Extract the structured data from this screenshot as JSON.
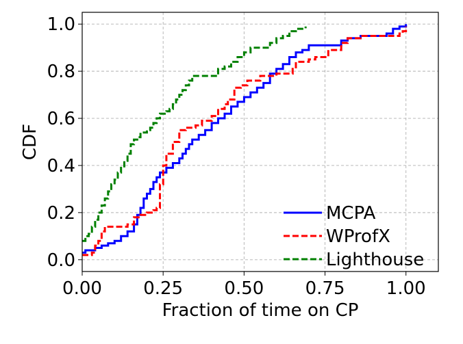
{
  "chart_data": {
    "type": "line",
    "title": "",
    "xlabel": "Fraction of time on CP",
    "ylabel": "CDF",
    "xlim": [
      0.0,
      1.1
    ],
    "ylim": [
      -0.05,
      1.05
    ],
    "x_ticks": [
      0.0,
      0.25,
      0.5,
      0.75,
      1.0
    ],
    "x_tick_labels": [
      "0.00",
      "0.25",
      "0.50",
      "0.75",
      "1.00"
    ],
    "y_ticks": [
      0.0,
      0.2,
      0.4,
      0.6,
      0.8,
      1.0
    ],
    "y_tick_labels": [
      "0.0",
      "0.2",
      "0.4",
      "0.6",
      "0.8",
      "1.0"
    ],
    "grid": true,
    "legend_position": "lower-right",
    "series": [
      {
        "name": "MCPA",
        "color": "#0000ff",
        "dash": "solid",
        "points": [
          [
            0.0,
            0.03
          ],
          [
            0.01,
            0.04
          ],
          [
            0.03,
            0.04
          ],
          [
            0.04,
            0.05
          ],
          [
            0.06,
            0.06
          ],
          [
            0.08,
            0.07
          ],
          [
            0.1,
            0.08
          ],
          [
            0.12,
            0.1
          ],
          [
            0.14,
            0.12
          ],
          [
            0.16,
            0.15
          ],
          [
            0.17,
            0.19
          ],
          [
            0.18,
            0.22
          ],
          [
            0.19,
            0.26
          ],
          [
            0.2,
            0.28
          ],
          [
            0.21,
            0.3
          ],
          [
            0.22,
            0.33
          ],
          [
            0.23,
            0.35
          ],
          [
            0.24,
            0.37
          ],
          [
            0.26,
            0.39
          ],
          [
            0.28,
            0.41
          ],
          [
            0.3,
            0.43
          ],
          [
            0.31,
            0.45
          ],
          [
            0.32,
            0.47
          ],
          [
            0.33,
            0.49
          ],
          [
            0.34,
            0.51
          ],
          [
            0.36,
            0.53
          ],
          [
            0.38,
            0.55
          ],
          [
            0.4,
            0.58
          ],
          [
            0.42,
            0.6
          ],
          [
            0.44,
            0.62
          ],
          [
            0.46,
            0.65
          ],
          [
            0.48,
            0.67
          ],
          [
            0.5,
            0.69
          ],
          [
            0.52,
            0.71
          ],
          [
            0.54,
            0.73
          ],
          [
            0.56,
            0.75
          ],
          [
            0.58,
            0.79
          ],
          [
            0.6,
            0.81
          ],
          [
            0.62,
            0.83
          ],
          [
            0.64,
            0.86
          ],
          [
            0.66,
            0.88
          ],
          [
            0.68,
            0.89
          ],
          [
            0.7,
            0.91
          ],
          [
            0.72,
            0.91
          ],
          [
            0.75,
            0.91
          ],
          [
            0.78,
            0.91
          ],
          [
            0.8,
            0.93
          ],
          [
            0.82,
            0.94
          ],
          [
            0.86,
            0.95
          ],
          [
            0.9,
            0.95
          ],
          [
            0.94,
            0.96
          ],
          [
            0.96,
            0.98
          ],
          [
            0.98,
            0.99
          ],
          [
            1.0,
            1.0
          ]
        ]
      },
      {
        "name": "WProfX",
        "color": "#ff0000",
        "dash": "dashed",
        "points": [
          [
            0.0,
            0.02
          ],
          [
            0.02,
            0.02
          ],
          [
            0.03,
            0.03
          ],
          [
            0.04,
            0.06
          ],
          [
            0.05,
            0.08
          ],
          [
            0.06,
            0.12
          ],
          [
            0.07,
            0.14
          ],
          [
            0.1,
            0.14
          ],
          [
            0.12,
            0.14
          ],
          [
            0.14,
            0.15
          ],
          [
            0.16,
            0.18
          ],
          [
            0.18,
            0.19
          ],
          [
            0.2,
            0.2
          ],
          [
            0.22,
            0.21
          ],
          [
            0.23,
            0.22
          ],
          [
            0.24,
            0.32
          ],
          [
            0.25,
            0.4
          ],
          [
            0.26,
            0.45
          ],
          [
            0.28,
            0.5
          ],
          [
            0.3,
            0.55
          ],
          [
            0.32,
            0.56
          ],
          [
            0.35,
            0.57
          ],
          [
            0.37,
            0.59
          ],
          [
            0.4,
            0.61
          ],
          [
            0.42,
            0.64
          ],
          [
            0.44,
            0.66
          ],
          [
            0.45,
            0.68
          ],
          [
            0.47,
            0.73
          ],
          [
            0.49,
            0.74
          ],
          [
            0.51,
            0.76
          ],
          [
            0.53,
            0.76
          ],
          [
            0.55,
            0.78
          ],
          [
            0.57,
            0.78
          ],
          [
            0.6,
            0.79
          ],
          [
            0.62,
            0.79
          ],
          [
            0.64,
            0.79
          ],
          [
            0.65,
            0.81
          ],
          [
            0.66,
            0.84
          ],
          [
            0.67,
            0.84
          ],
          [
            0.7,
            0.85
          ],
          [
            0.72,
            0.86
          ],
          [
            0.75,
            0.86
          ],
          [
            0.76,
            0.89
          ],
          [
            0.79,
            0.89
          ],
          [
            0.8,
            0.92
          ],
          [
            0.82,
            0.94
          ],
          [
            0.84,
            0.94
          ],
          [
            0.86,
            0.95
          ],
          [
            0.9,
            0.95
          ],
          [
            0.95,
            0.95
          ],
          [
            0.98,
            0.96
          ],
          [
            0.99,
            0.97
          ],
          [
            1.0,
            0.99
          ]
        ]
      },
      {
        "name": "Lighthouse",
        "color": "#008000",
        "dash": "dashed",
        "points": [
          [
            0.0,
            0.08
          ],
          [
            0.01,
            0.1
          ],
          [
            0.02,
            0.11
          ],
          [
            0.03,
            0.14
          ],
          [
            0.04,
            0.17
          ],
          [
            0.05,
            0.2
          ],
          [
            0.06,
            0.23
          ],
          [
            0.07,
            0.26
          ],
          [
            0.08,
            0.29
          ],
          [
            0.09,
            0.32
          ],
          [
            0.1,
            0.34
          ],
          [
            0.11,
            0.37
          ],
          [
            0.12,
            0.39
          ],
          [
            0.13,
            0.42
          ],
          [
            0.14,
            0.45
          ],
          [
            0.15,
            0.49
          ],
          [
            0.16,
            0.51
          ],
          [
            0.17,
            0.52
          ],
          [
            0.18,
            0.54
          ],
          [
            0.2,
            0.55
          ],
          [
            0.21,
            0.56
          ],
          [
            0.22,
            0.58
          ],
          [
            0.23,
            0.6
          ],
          [
            0.24,
            0.62
          ],
          [
            0.26,
            0.63
          ],
          [
            0.27,
            0.64
          ],
          [
            0.28,
            0.66
          ],
          [
            0.29,
            0.68
          ],
          [
            0.3,
            0.7
          ],
          [
            0.31,
            0.72
          ],
          [
            0.32,
            0.74
          ],
          [
            0.33,
            0.76
          ],
          [
            0.34,
            0.78
          ],
          [
            0.38,
            0.78
          ],
          [
            0.4,
            0.78
          ],
          [
            0.42,
            0.81
          ],
          [
            0.44,
            0.82
          ],
          [
            0.46,
            0.84
          ],
          [
            0.48,
            0.86
          ],
          [
            0.5,
            0.88
          ],
          [
            0.52,
            0.9
          ],
          [
            0.56,
            0.9
          ],
          [
            0.58,
            0.92
          ],
          [
            0.6,
            0.94
          ],
          [
            0.62,
            0.95
          ],
          [
            0.64,
            0.97
          ],
          [
            0.66,
            0.98
          ],
          [
            0.69,
            0.99
          ]
        ]
      }
    ]
  }
}
